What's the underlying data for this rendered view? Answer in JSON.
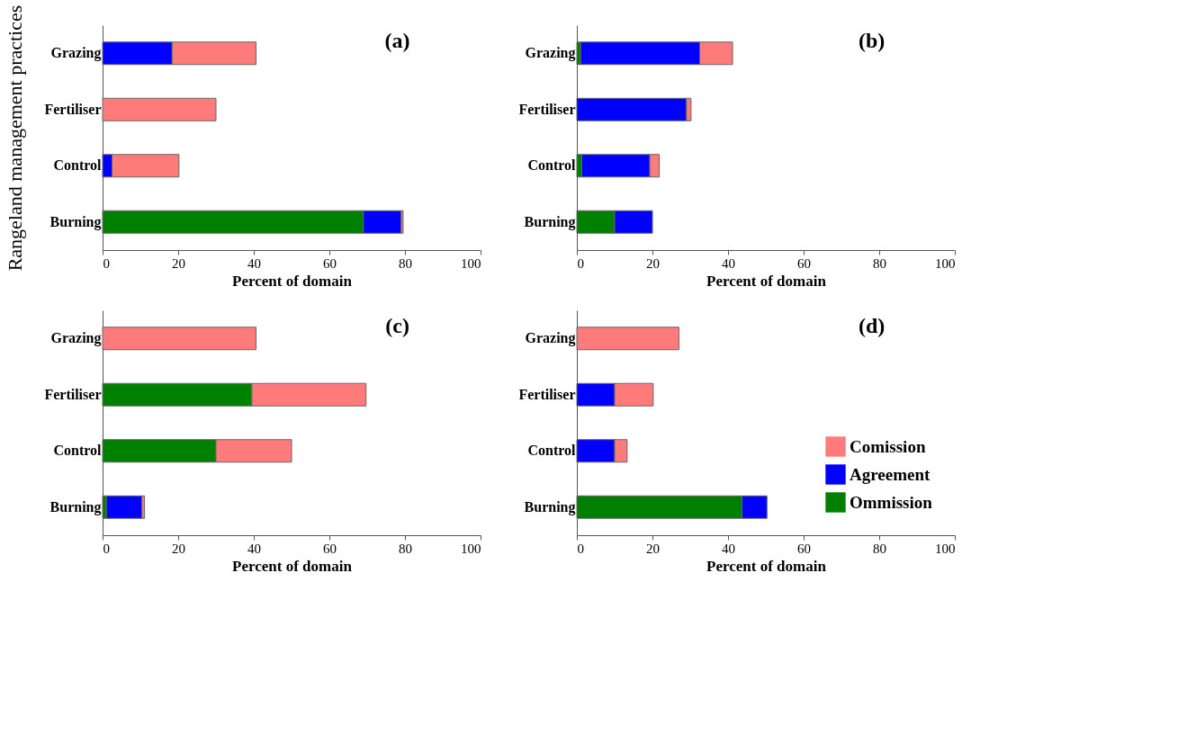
{
  "chart_data": [
    {
      "type": "bar",
      "title": "(a)",
      "ylabel": "Rangeland management practices",
      "xlabel": "Percent of domain",
      "orientation": "horizontal",
      "stacked": true,
      "categories": [
        "Grazing",
        "Fertiliser",
        "Control",
        "Burning"
      ],
      "xlim": [
        0,
        100
      ],
      "xticks": [
        0,
        20,
        40,
        60,
        80,
        100
      ],
      "grid": false,
      "legend": false,
      "series": [
        {
          "color": "#008000",
          "values": [
            0,
            0,
            0,
            69
          ]
        },
        {
          "color": "#0000ff",
          "values": [
            18.4,
            0,
            2.5,
            10
          ]
        },
        {
          "color": "#ff7b7b",
          "values": [
            22.2,
            30,
            17.7,
            0.5
          ]
        }
      ]
    },
    {
      "type": "bar",
      "title": "(b)",
      "xlabel": "Percent of domain",
      "orientation": "horizontal",
      "stacked": true,
      "categories": [
        "Grazing",
        "Fertiliser",
        "Control",
        "Burning"
      ],
      "xlim": [
        0,
        100
      ],
      "xticks": [
        0,
        20,
        40,
        60,
        80,
        100
      ],
      "grid": false,
      "legend": false,
      "series": [
        {
          "color": "#008000",
          "values": [
            1,
            0,
            1.3,
            10
          ]
        },
        {
          "color": "#0000ff",
          "values": [
            31.5,
            29,
            18,
            10
          ]
        },
        {
          "color": "#ff7b7b",
          "values": [
            8.7,
            1.2,
            2.5,
            0
          ]
        }
      ]
    },
    {
      "type": "bar",
      "title": "(c)",
      "xlabel": "Percent of domain",
      "orientation": "horizontal",
      "stacked": true,
      "categories": [
        "Grazing",
        "Fertiliser",
        "Control",
        "Burning"
      ],
      "xlim": [
        0,
        100
      ],
      "xticks": [
        0,
        20,
        40,
        60,
        80,
        100
      ],
      "grid": false,
      "legend": false,
      "series": [
        {
          "color": "#008000",
          "values": [
            0,
            39.5,
            30,
            1
          ]
        },
        {
          "color": "#0000ff",
          "values": [
            0,
            0,
            0,
            9.4
          ]
        },
        {
          "color": "#ff7b7b",
          "values": [
            40.6,
            30.2,
            20,
            0.7
          ]
        }
      ]
    },
    {
      "type": "bar",
      "title": "(d)",
      "xlabel": "Percent of domain",
      "orientation": "horizontal",
      "stacked": true,
      "categories": [
        "Grazing",
        "Fertiliser",
        "Control",
        "Burning"
      ],
      "xlim": [
        0,
        100
      ],
      "xticks": [
        0,
        20,
        40,
        60,
        80,
        100
      ],
      "grid": false,
      "legend": "bottom right",
      "series": [
        {
          "name": "Ommission",
          "color": "#008000",
          "values": [
            0,
            0,
            0,
            43.7
          ]
        },
        {
          "name": "Agreement",
          "color": "#0000ff",
          "values": [
            0,
            10,
            10,
            6.6
          ]
        },
        {
          "name": "Comission",
          "color": "#ff7b7b",
          "values": [
            27,
            10.2,
            3.3,
            0
          ]
        }
      ]
    }
  ]
}
